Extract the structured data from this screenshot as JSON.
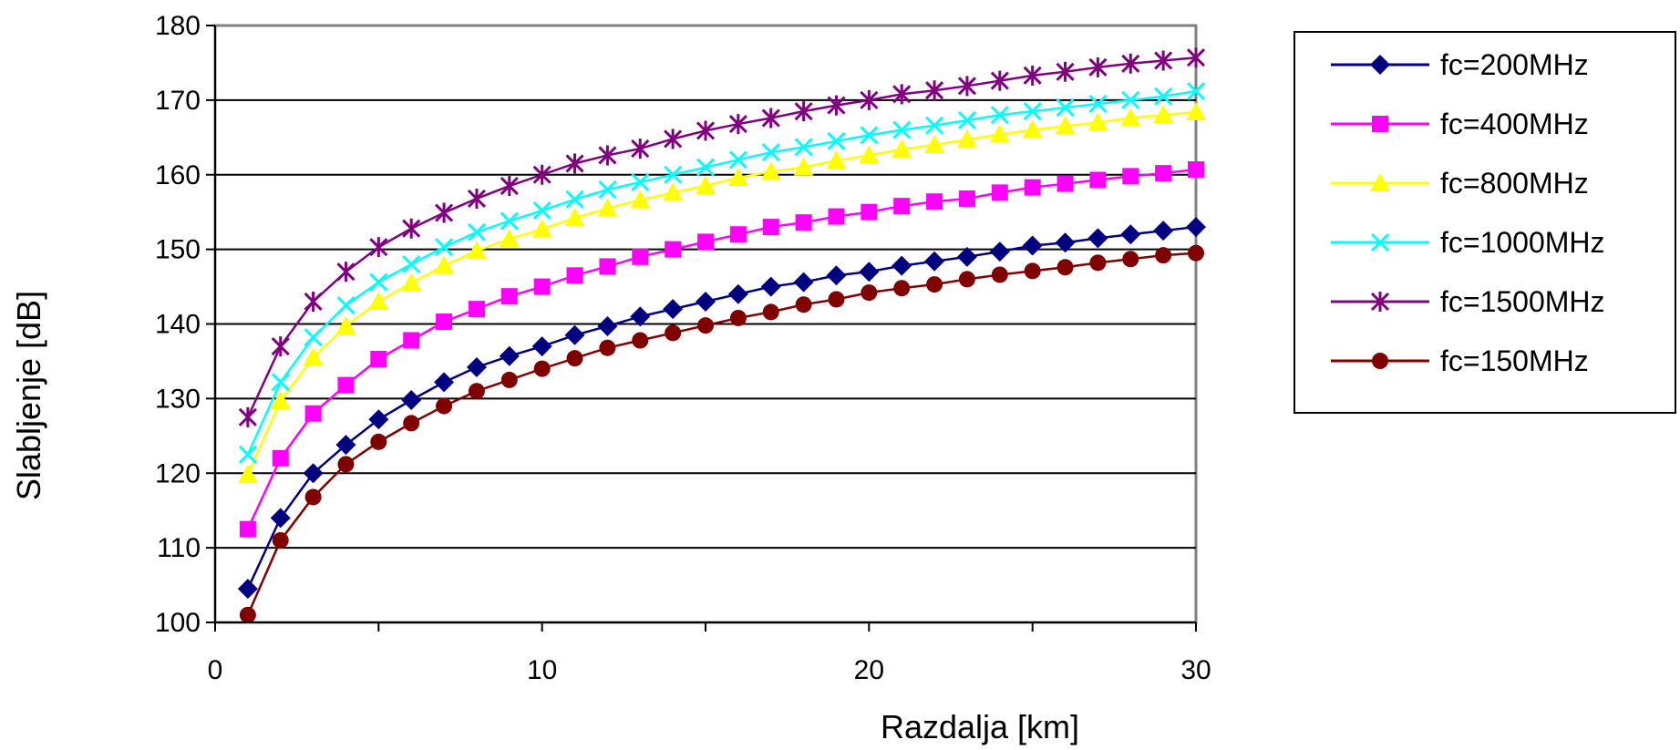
{
  "chart_data": {
    "type": "line",
    "title": "",
    "xlabel": "Razdalja [km]",
    "ylabel": "Slabljenje [dB]",
    "xlim": [
      0,
      30
    ],
    "ylim": [
      100,
      180
    ],
    "xticks": [
      0,
      10,
      20,
      30
    ],
    "yticks": [
      100,
      110,
      120,
      130,
      140,
      150,
      160,
      170,
      180
    ],
    "x_minor_ticks": [
      5,
      15,
      25
    ],
    "grid": "horizontal",
    "legend_position": "right",
    "x": [
      1,
      2,
      3,
      4,
      5,
      6,
      7,
      8,
      9,
      10,
      11,
      12,
      13,
      14,
      15,
      16,
      17,
      18,
      19,
      20,
      21,
      22,
      23,
      24,
      25,
      26,
      27,
      28,
      29,
      30
    ],
    "series": [
      {
        "name": "fc=200MHz",
        "color": "#000080",
        "marker": "diamond",
        "values": [
          104.5,
          114,
          120,
          123.8,
          127.2,
          129.8,
          132.2,
          134.2,
          135.7,
          137,
          138.5,
          139.7,
          141,
          142,
          143,
          144,
          145,
          145.6,
          146.5,
          147,
          147.8,
          148.4,
          149,
          149.7,
          150.5,
          150.9,
          151.5,
          152,
          152.5,
          153
        ]
      },
      {
        "name": "fc=400MHz",
        "color": "#ff00ff",
        "marker": "square",
        "values": [
          112.5,
          122,
          128,
          131.8,
          135.3,
          137.8,
          140.3,
          142,
          143.7,
          145,
          146.5,
          147.7,
          149,
          150,
          151,
          152,
          153,
          153.6,
          154.4,
          155,
          155.8,
          156.4,
          156.8,
          157.6,
          158.3,
          158.8,
          159.3,
          159.8,
          160.2,
          160.7
        ]
      },
      {
        "name": "fc=800MHz",
        "color": "#ffff00",
        "marker": "triangle",
        "values": [
          119.8,
          129.7,
          135.5,
          139.7,
          143,
          145.5,
          147.8,
          149.8,
          151.4,
          152.7,
          154.2,
          155.5,
          156.6,
          157.6,
          158.5,
          159.6,
          160.4,
          161,
          161.9,
          162.6,
          163.4,
          164,
          164.7,
          165.4,
          166,
          166.5,
          167,
          167.6,
          168,
          168.4
        ]
      },
      {
        "name": "fc=1000MHz",
        "color": "#00ffff",
        "marker": "x",
        "values": [
          122.5,
          132.2,
          138.2,
          142.5,
          145.6,
          148,
          150.3,
          152.3,
          153.8,
          155.2,
          156.7,
          158,
          159,
          160,
          161,
          162,
          163,
          163.7,
          164.5,
          165.3,
          166,
          166.6,
          167.3,
          168,
          168.5,
          169,
          169.5,
          170,
          170.5,
          171.2
        ]
      },
      {
        "name": "fc=1500MHz",
        "color": "#800080",
        "marker": "star",
        "values": [
          127.5,
          137,
          143,
          147,
          150.3,
          152.8,
          154.9,
          156.8,
          158.5,
          160,
          161.5,
          162.6,
          163.5,
          164.8,
          165.9,
          166.8,
          167.6,
          168.5,
          169.3,
          170,
          170.8,
          171.3,
          171.9,
          172.6,
          173.3,
          173.8,
          174.4,
          174.9,
          175.3,
          175.7
        ]
      },
      {
        "name": "fc=150MHz",
        "color": "#800000",
        "marker": "circle",
        "values": [
          101,
          111,
          116.8,
          121.2,
          124.2,
          126.7,
          129,
          131,
          132.5,
          134,
          135.4,
          136.8,
          137.8,
          138.8,
          139.8,
          140.8,
          141.6,
          142.6,
          143.3,
          144.2,
          144.8,
          145.3,
          146,
          146.6,
          147.1,
          147.6,
          148.2,
          148.7,
          149.2,
          149.5
        ]
      }
    ]
  }
}
